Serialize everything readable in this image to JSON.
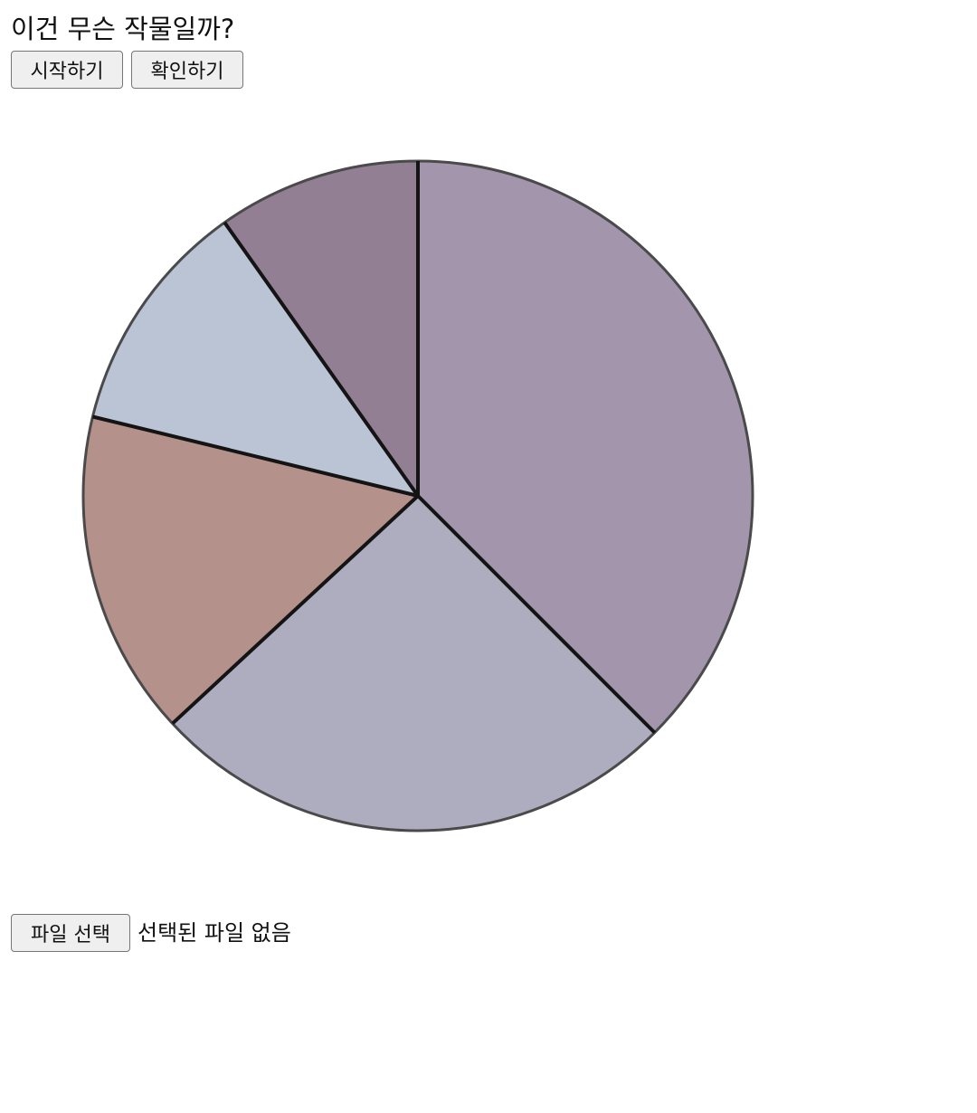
{
  "header": {
    "title": "이건 무슨 작물일까?"
  },
  "toolbar": {
    "start_label": "시작하기",
    "check_label": "확인하기"
  },
  "file_input": {
    "button_label": "파일 선택",
    "status_text": "선택된 파일 없음"
  },
  "chart_data": {
    "type": "pie",
    "slices": [
      {
        "value": 37.5,
        "color": "#a396ac"
      },
      {
        "value": 25.6,
        "color": "#aeadc0"
      },
      {
        "value": 15.7,
        "color": "#b5918b"
      },
      {
        "value": 11.4,
        "color": "#bbc4d5"
      },
      {
        "value": 9.8,
        "color": "#927f93"
      }
    ],
    "start_angle_deg": 0,
    "direction": "clockwise"
  }
}
